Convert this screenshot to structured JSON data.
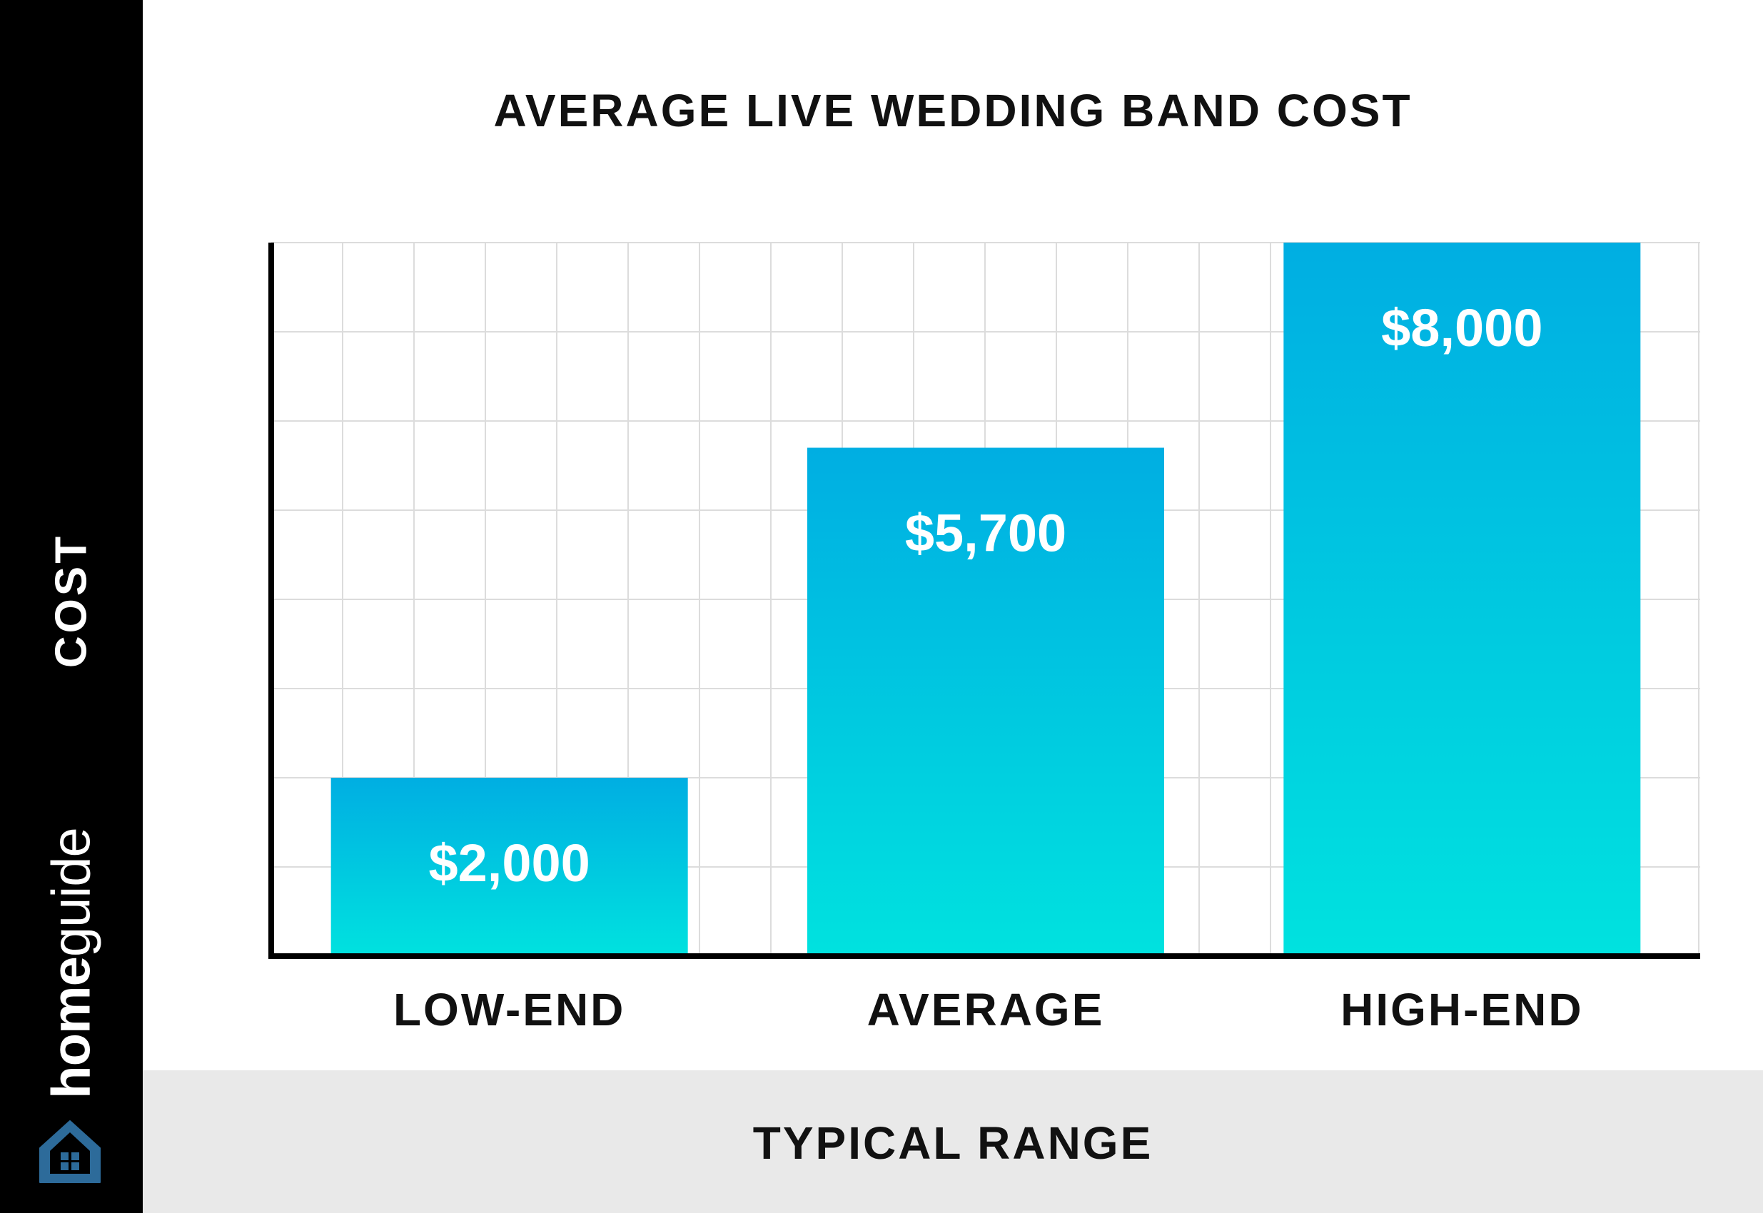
{
  "brand": {
    "part1": "home",
    "part2": "guide",
    "accent": "#2d6b9a"
  },
  "colors": {
    "bar_top": "#00aee2",
    "bar_bottom": "#00e2df",
    "grid": "#dcdcdc",
    "axis": "#000000"
  },
  "chart_data": {
    "type": "bar",
    "title": "AVERAGE LIVE WEDDING BAND COST",
    "xlabel": "TYPICAL RANGE",
    "ylabel": "COST",
    "categories": [
      "LOW-END",
      "AVERAGE",
      "HIGH-END"
    ],
    "values": [
      2000,
      5700,
      8000
    ],
    "data_labels": [
      "$2,000",
      "$5,700",
      "$8,000"
    ],
    "ylim": [
      0,
      8000
    ],
    "grid": true,
    "legend": "none"
  }
}
